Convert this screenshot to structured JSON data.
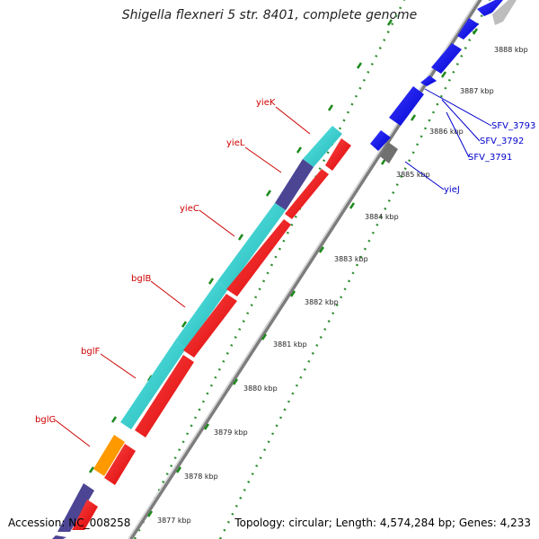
{
  "title": "Shigella flexneri 5 str. 8401, complete genome",
  "footer": {
    "accession": "Accession: NC_008258",
    "topology": "Topology: circular; Length: 4,574,284 bp; Genes: 4,233"
  },
  "colors": {
    "backbone": "#8c8c8c",
    "tick": "#1e8a1e",
    "forward_label": "#0000cc",
    "reverse_label": "#cc0000"
  },
  "ticks": [
    "3877 kbp",
    "3878 kbp",
    "3879 kbp",
    "3880 kbp",
    "3881 kbp",
    "3882 kbp",
    "3883 kbp",
    "3884 kbp",
    "3885 kbp",
    "3886 kbp",
    "3887 kbp",
    "3888 kbp"
  ],
  "gene_labels": {
    "left": [
      "yieK",
      "yieL",
      "yieC",
      "bglB",
      "bglF",
      "bglG"
    ],
    "right": [
      "SFV_3793",
      "SFV_3792",
      "SFV_3791",
      "yieJ"
    ]
  }
}
